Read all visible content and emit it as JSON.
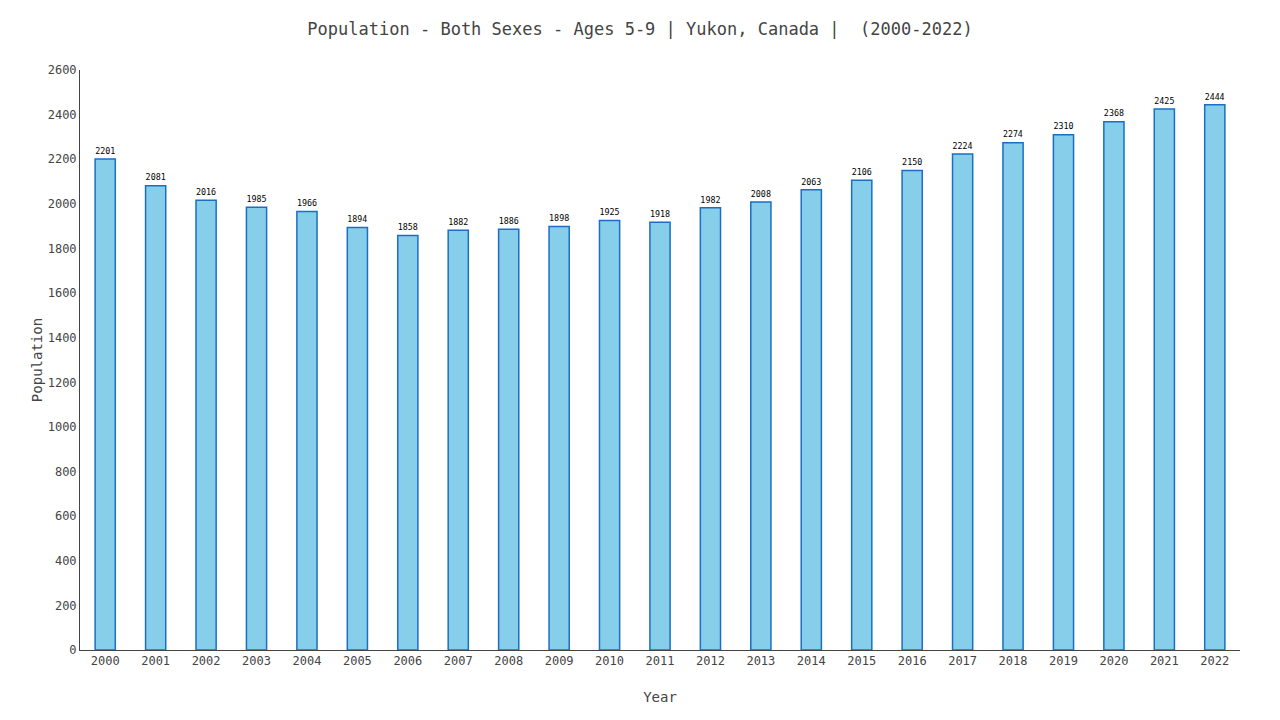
{
  "chart_data": {
    "type": "bar",
    "title": "Population - Both Sexes - Ages 5-9 | Yukon, Canada |  (2000-2022)",
    "x_label": "Year",
    "y_label": "Population",
    "categories": [
      "2000",
      "2001",
      "2002",
      "2003",
      "2004",
      "2005",
      "2006",
      "2007",
      "2008",
      "2009",
      "2010",
      "2011",
      "2012",
      "2013",
      "2014",
      "2015",
      "2016",
      "2017",
      "2018",
      "2019",
      "2020",
      "2021",
      "2022"
    ],
    "values": [
      2201,
      2081,
      2016,
      1985,
      1966,
      1894,
      1858,
      1882,
      1886,
      1898,
      1925,
      1918,
      1982,
      2008,
      2063,
      2106,
      2150,
      2224,
      2274,
      2310,
      2368,
      2425,
      2444
    ],
    "color": "#87ceeb",
    "ylim": [
      0,
      2600
    ],
    "yticks": [
      0,
      200,
      400,
      600,
      800,
      1000,
      1200,
      1400,
      1600,
      1800,
      2000,
      2200,
      2400,
      2600
    ],
    "data_labels": true,
    "grid": false
  }
}
